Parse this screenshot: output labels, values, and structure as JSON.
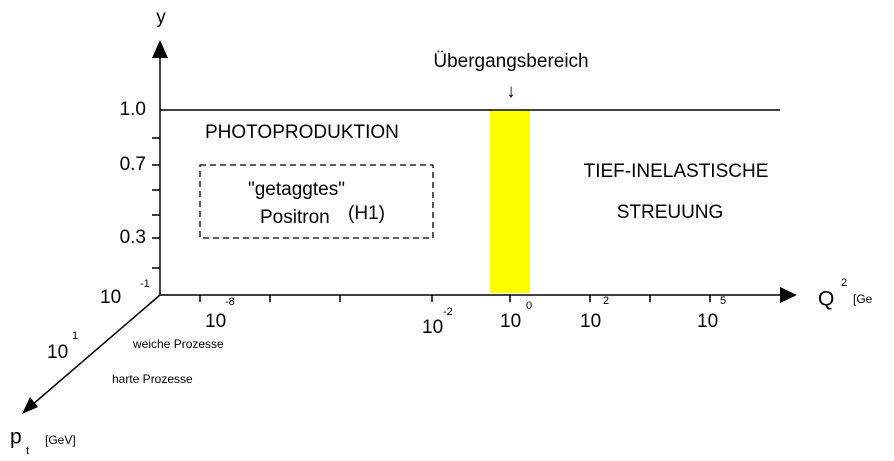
{
  "axes": {
    "y_label": "y",
    "x_label": {
      "base": "Q",
      "exp": "2",
      "unit": "[Ge"
    },
    "pt_label": {
      "base": "p",
      "sub": "t",
      "unit": "[GeV]"
    }
  },
  "y_ticks": [
    "1.0",
    "0.7",
    "0.3"
  ],
  "y_tick_log": {
    "base": "10",
    "exp": "-1"
  },
  "x_ticks": [
    {
      "base": "10",
      "exp": "-8"
    },
    {
      "base": "10",
      "exp": "-2"
    },
    {
      "base": "10",
      "exp": "0"
    },
    {
      "base": "10",
      "exp": "2"
    },
    {
      "base": "10",
      "exp": "5"
    }
  ],
  "pt_tick": {
    "base": "10",
    "exp": "1"
  },
  "regions": {
    "transition": "Übergangsbereich",
    "arrow": "↓",
    "photoproduction": "PHOTOPRODUKTION",
    "tagged": [
      "\"getaggtes\"",
      "Positron",
      "(H1)"
    ],
    "dis": [
      "TIEF-INELASTISCHE",
      "STREUUNG"
    ],
    "soft": "weiche Prozesse",
    "hard": "harte Prozesse"
  }
}
